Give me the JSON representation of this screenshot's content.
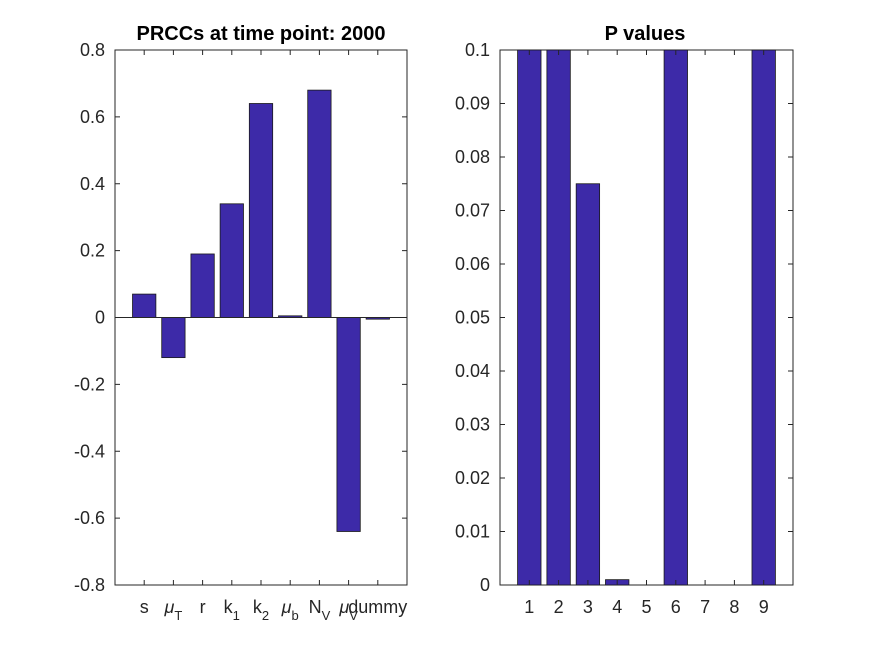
{
  "colors": {
    "bar": "#3d2aa8",
    "axis": "#262626",
    "background": "#ffffff"
  },
  "chart_data": [
    {
      "type": "bar",
      "title": "PRCCs at time point: 2000",
      "xlabel": "",
      "ylabel": "",
      "ylim": [
        -0.8,
        0.8
      ],
      "yticks": [
        "-0.8",
        "-0.6",
        "-0.4",
        "-0.2",
        "0",
        "0.2",
        "0.4",
        "0.6",
        "0.8"
      ],
      "categories": [
        {
          "base": "s",
          "sub": ""
        },
        {
          "base": "μ",
          "sub": "T"
        },
        {
          "base": "r",
          "sub": ""
        },
        {
          "base": "k",
          "sub": "1"
        },
        {
          "base": "k",
          "sub": "2"
        },
        {
          "base": "μ",
          "sub": "b"
        },
        {
          "base": "N",
          "sub": "V"
        },
        {
          "base": "μ",
          "sub": "V"
        },
        {
          "base": "dummy",
          "sub": ""
        }
      ],
      "values": [
        0.07,
        -0.12,
        0.19,
        0.34,
        0.64,
        0.005,
        0.68,
        -0.64,
        -0.005
      ],
      "grid": false
    },
    {
      "type": "bar",
      "title": "P values",
      "xlabel": "",
      "ylabel": "",
      "ylim": [
        0,
        0.1
      ],
      "yticks": [
        "0",
        "0.01",
        "0.02",
        "0.03",
        "0.04",
        "0.05",
        "0.06",
        "0.07",
        "0.08",
        "0.09",
        "0.1"
      ],
      "categories": [
        "1",
        "2",
        "3",
        "4",
        "5",
        "6",
        "7",
        "8",
        "9"
      ],
      "values": [
        0.1,
        0.1,
        0.075,
        0.001,
        0,
        0.1,
        0,
        0,
        0.1
      ],
      "grid": false
    }
  ]
}
